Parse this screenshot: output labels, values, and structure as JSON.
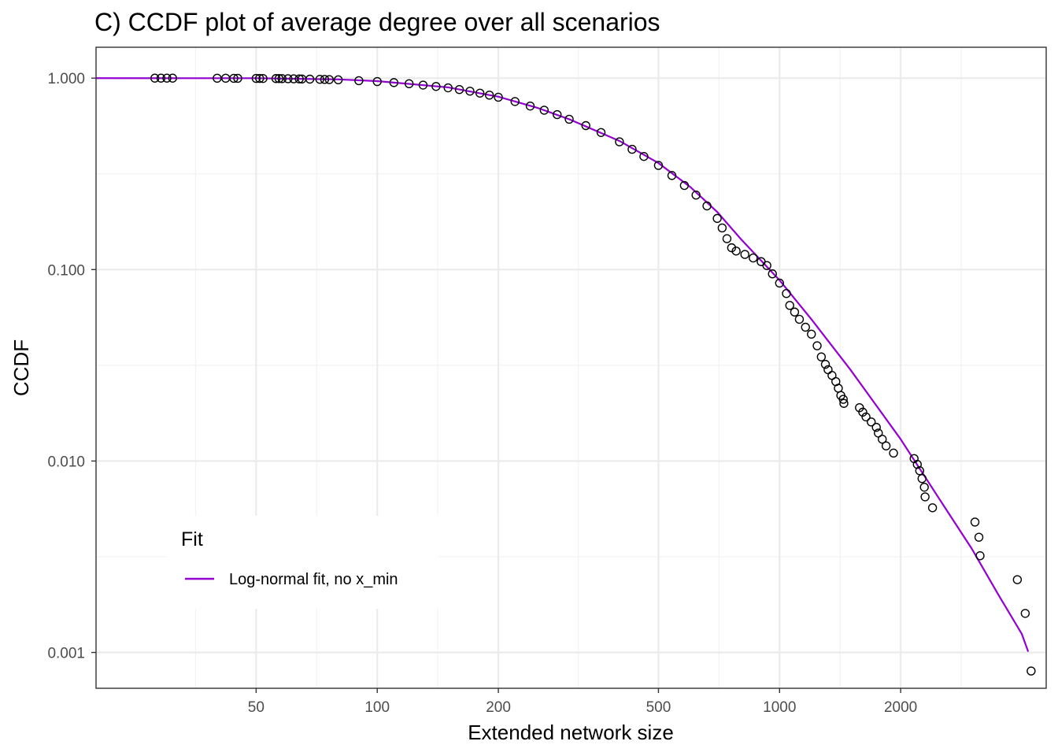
{
  "chart_data": {
    "type": "scatter",
    "title": "C) CCDF plot of average degree over all scenarios",
    "xlabel": "Extended network size",
    "ylabel": "CCDF",
    "x_scale": "log10",
    "y_scale": "log10",
    "xlim": [
      20,
      4600
    ],
    "ylim": [
      0.00065,
      1.45
    ],
    "x_ticks": [
      {
        "value": 50,
        "label": "50"
      },
      {
        "value": 100,
        "label": "100"
      },
      {
        "value": 200,
        "label": "200"
      },
      {
        "value": 500,
        "label": "500"
      },
      {
        "value": 1000,
        "label": "1000"
      },
      {
        "value": 2000,
        "label": "2000"
      }
    ],
    "y_ticks": [
      {
        "value": 1.0,
        "label": "1.000"
      },
      {
        "value": 0.1,
        "label": "0.100"
      },
      {
        "value": 0.01,
        "label": "0.010"
      },
      {
        "value": 0.001,
        "label": "0.001"
      }
    ],
    "grid": true,
    "legend": {
      "title": "Fit",
      "position": "bottom-left",
      "entries": [
        {
          "label": "Log-normal fit, no x_min",
          "color": "#9400D3"
        }
      ]
    },
    "series": [
      {
        "kind": "points",
        "marker": "open-circle",
        "color": "#000000",
        "points": [
          [
            28,
            1.0
          ],
          [
            29,
            1.0
          ],
          [
            30,
            1.0
          ],
          [
            31,
            1.0
          ],
          [
            40,
            0.999
          ],
          [
            42,
            0.999
          ],
          [
            44,
            0.998
          ],
          [
            45,
            0.998
          ],
          [
            50,
            0.997
          ],
          [
            51,
            0.997
          ],
          [
            52,
            0.996
          ],
          [
            56,
            0.995
          ],
          [
            57,
            0.995
          ],
          [
            58,
            0.994
          ],
          [
            60,
            0.993
          ],
          [
            62,
            0.992
          ],
          [
            64,
            0.991
          ],
          [
            65,
            0.99
          ],
          [
            68,
            0.988
          ],
          [
            72,
            0.986
          ],
          [
            74,
            0.985
          ],
          [
            76,
            0.983
          ],
          [
            80,
            0.98
          ],
          [
            90,
            0.97
          ],
          [
            100,
            0.96
          ],
          [
            110,
            0.948
          ],
          [
            120,
            0.935
          ],
          [
            130,
            0.92
          ],
          [
            140,
            0.905
          ],
          [
            150,
            0.89
          ],
          [
            160,
            0.872
          ],
          [
            170,
            0.855
          ],
          [
            180,
            0.835
          ],
          [
            190,
            0.815
          ],
          [
            200,
            0.795
          ],
          [
            220,
            0.755
          ],
          [
            240,
            0.715
          ],
          [
            260,
            0.68
          ],
          [
            280,
            0.645
          ],
          [
            300,
            0.61
          ],
          [
            330,
            0.565
          ],
          [
            360,
            0.52
          ],
          [
            400,
            0.465
          ],
          [
            430,
            0.425
          ],
          [
            460,
            0.39
          ],
          [
            500,
            0.35
          ],
          [
            540,
            0.31
          ],
          [
            580,
            0.275
          ],
          [
            620,
            0.245
          ],
          [
            660,
            0.215
          ],
          [
            700,
            0.185
          ],
          [
            720,
            0.165
          ],
          [
            740,
            0.145
          ],
          [
            760,
            0.13
          ],
          [
            780,
            0.125
          ],
          [
            820,
            0.12
          ],
          [
            860,
            0.115
          ],
          [
            900,
            0.11
          ],
          [
            930,
            0.105
          ],
          [
            960,
            0.095
          ],
          [
            1000,
            0.085
          ],
          [
            1040,
            0.075
          ],
          [
            1060,
            0.065
          ],
          [
            1090,
            0.06
          ],
          [
            1120,
            0.055
          ],
          [
            1160,
            0.05
          ],
          [
            1200,
            0.046
          ],
          [
            1240,
            0.04
          ],
          [
            1270,
            0.035
          ],
          [
            1300,
            0.032
          ],
          [
            1320,
            0.03
          ],
          [
            1350,
            0.028
          ],
          [
            1380,
            0.026
          ],
          [
            1400,
            0.024
          ],
          [
            1420,
            0.022
          ],
          [
            1440,
            0.021
          ],
          [
            1445,
            0.02
          ],
          [
            1580,
            0.019
          ],
          [
            1610,
            0.018
          ],
          [
            1640,
            0.017
          ],
          [
            1690,
            0.016
          ],
          [
            1740,
            0.015
          ],
          [
            1760,
            0.014
          ],
          [
            1800,
            0.013
          ],
          [
            1840,
            0.012
          ],
          [
            1920,
            0.011
          ],
          [
            2160,
            0.0103
          ],
          [
            2200,
            0.0096
          ],
          [
            2230,
            0.0089
          ],
          [
            2260,
            0.0081
          ],
          [
            2290,
            0.0073
          ],
          [
            2300,
            0.0065
          ],
          [
            2400,
            0.0057
          ],
          [
            3060,
            0.0048
          ],
          [
            3130,
            0.004
          ],
          [
            3150,
            0.0032
          ],
          [
            3900,
            0.0024
          ],
          [
            4080,
            0.0016
          ],
          [
            4220,
            0.0008
          ]
        ]
      },
      {
        "kind": "line",
        "name": "Log-normal fit, no x_min",
        "color": "#9400D3",
        "points": [
          [
            20,
            1.0
          ],
          [
            50,
            0.999
          ],
          [
            80,
            0.985
          ],
          [
            100,
            0.965
          ],
          [
            150,
            0.895
          ],
          [
            200,
            0.8
          ],
          [
            250,
            0.7
          ],
          [
            300,
            0.61
          ],
          [
            400,
            0.47
          ],
          [
            500,
            0.36
          ],
          [
            600,
            0.27
          ],
          [
            700,
            0.2
          ],
          [
            800,
            0.145
          ],
          [
            1000,
            0.088
          ],
          [
            1200,
            0.055
          ],
          [
            1500,
            0.03
          ],
          [
            2000,
            0.013
          ],
          [
            2500,
            0.0063
          ],
          [
            3000,
            0.0035
          ],
          [
            3500,
            0.002
          ],
          [
            4000,
            0.00125
          ],
          [
            4150,
            0.00101
          ]
        ]
      }
    ]
  }
}
